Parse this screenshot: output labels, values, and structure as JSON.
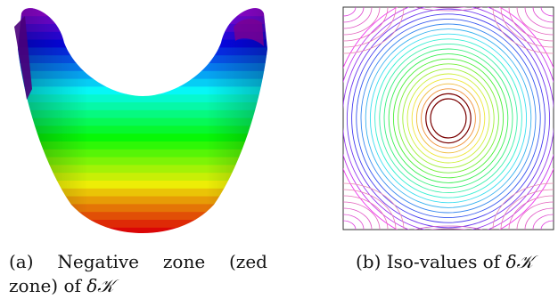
{
  "figure": {
    "panels": [
      {
        "id": "a",
        "caption_words_line1": [
          "(a)",
          "Negative",
          "zone",
          "(zed"
        ],
        "caption_line2": "zone) of",
        "caption_symbol": "δ𝒦"
      },
      {
        "id": "b",
        "caption_text": "(b) Iso-values of",
        "caption_symbol": "δ𝒦"
      }
    ],
    "colors": {
      "surface_bottom": "#c00000",
      "surface_top": "#9b00b5",
      "contour_frame": "#333333"
    }
  }
}
